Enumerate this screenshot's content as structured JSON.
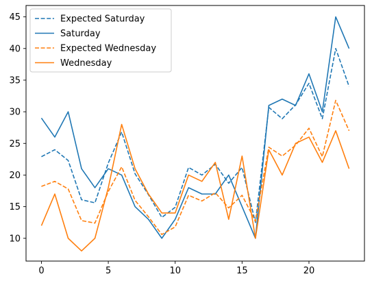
{
  "chart_data": {
    "type": "line",
    "title": "",
    "xlabel": "",
    "ylabel": "",
    "x": [
      0,
      1,
      2,
      3,
      4,
      5,
      6,
      7,
      8,
      9,
      10,
      11,
      12,
      13,
      14,
      15,
      16,
      17,
      18,
      19,
      20,
      21,
      22,
      23
    ],
    "xlim": [
      -1.15,
      24.15
    ],
    "ylim": [
      6.4,
      46.8
    ],
    "xticks": [
      0,
      5,
      10,
      15,
      20
    ],
    "yticks": [
      10,
      15,
      20,
      25,
      30,
      35,
      40,
      45
    ],
    "legend_position": "upper left",
    "grid": false,
    "series": [
      {
        "name": "Expected Saturday",
        "color": "#1f77b4",
        "style": "dashed",
        "values": [
          22.9,
          24,
          22.3,
          16.1,
          15.6,
          21.9,
          26.8,
          20.2,
          16.9,
          13.3,
          14.9,
          21.2,
          20,
          21.7,
          18.7,
          21.2,
          12.5,
          30.7,
          28.9,
          31.1,
          34.5,
          28.9,
          40,
          34
        ]
      },
      {
        "name": "Saturday",
        "color": "#1f77b4",
        "style": "solid",
        "values": [
          29,
          26,
          30,
          21,
          18,
          21,
          20,
          15,
          13,
          10,
          13,
          18,
          17,
          17,
          20,
          15,
          10,
          31,
          32,
          31,
          36,
          30,
          45,
          40
        ]
      },
      {
        "name": "Expected Wednesday",
        "color": "#ff7f0e",
        "style": "dashed",
        "values": [
          18.2,
          19,
          17.8,
          12.8,
          12.4,
          17.4,
          21.3,
          16,
          13.4,
          10.6,
          11.8,
          16.8,
          15.9,
          17.2,
          14.8,
          16.8,
          12.7,
          24.4,
          23,
          24.7,
          27.4,
          22.9,
          31.8,
          27
        ]
      },
      {
        "name": "Wednesday",
        "color": "#ff7f0e",
        "style": "solid",
        "values": [
          12,
          17,
          10,
          8,
          10,
          18,
          28,
          21,
          17,
          14,
          14,
          20,
          19,
          22,
          13,
          23,
          10,
          24,
          20,
          25,
          26,
          22,
          27,
          21
        ]
      }
    ]
  }
}
